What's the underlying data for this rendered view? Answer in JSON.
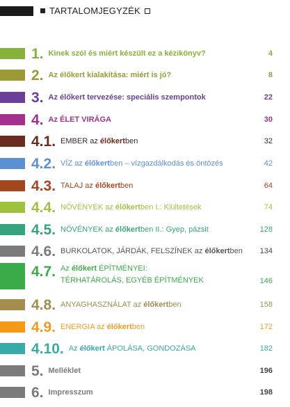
{
  "header": {
    "title": "TARTALOMJEGYZÉK"
  },
  "entries": [
    {
      "number": "1.",
      "title": [
        {
          "text": "Kinek szól és miért készült ez a kézikönyv?"
        }
      ],
      "page": "4"
    },
    {
      "number": "2.",
      "title": [
        {
          "text": "Az "
        },
        {
          "text": "élőkert",
          "bold": true
        },
        {
          "text": " kialakítása: miért is jó?"
        }
      ],
      "page": "8"
    },
    {
      "number": "3.",
      "title": [
        {
          "text": "Az "
        },
        {
          "text": "élőkert",
          "bold": true
        },
        {
          "text": " tervezése: speciális szempontok"
        }
      ],
      "page": "22"
    },
    {
      "number": "4.",
      "title": [
        {
          "text": "Az ÉLET VIRÁGA"
        }
      ],
      "page": "30"
    },
    {
      "number": "4.1.",
      "title": [
        {
          "text": "EMBER az "
        },
        {
          "text": "élőkert",
          "bold": true
        },
        {
          "text": "ben"
        }
      ],
      "page": "32"
    },
    {
      "number": "4.2.",
      "title": [
        {
          "text": "VÍZ az "
        },
        {
          "text": "élőkert",
          "bold": true
        },
        {
          "text": "ben – vízgazdálkodás és öntözés"
        }
      ],
      "page": "42"
    },
    {
      "number": "4.3.",
      "title": [
        {
          "text": "TALAJ az "
        },
        {
          "text": "élőkert",
          "bold": true
        },
        {
          "text": "ben"
        }
      ],
      "page": "64"
    },
    {
      "number": "4.4.",
      "title": [
        {
          "text": "NÖVÉNYEK az "
        },
        {
          "text": "élőkert",
          "bold": true
        },
        {
          "text": "ben I.: Kiültetések"
        }
      ],
      "page": "74"
    },
    {
      "number": "4.5.",
      "title": [
        {
          "text": "NÖVÉNYEK az "
        },
        {
          "text": "élőkert",
          "bold": true
        },
        {
          "text": "ben II.: Gyep, pázsit"
        }
      ],
      "page": "128"
    },
    {
      "number": "4.6.",
      "title": [
        {
          "text": "BURKOLATOK, JÁRDÁK, FELSZÍNEK az "
        },
        {
          "text": "élőkert",
          "bold": true
        },
        {
          "text": "ben"
        }
      ],
      "page": "134"
    },
    {
      "number": "4.7.",
      "title": [
        {
          "text": "Az "
        },
        {
          "text": "élőkert",
          "bold": true
        },
        {
          "text": " ÉPÍTMÉNYEI: TÉRHATÁROLÁS, EGYÉB ÉPÍTMÉNYEK"
        }
      ],
      "page": "146"
    },
    {
      "number": "4.8.",
      "title": [
        {
          "text": "ANYAGHASZNÁLAT az "
        },
        {
          "text": "élőkert",
          "bold": true
        },
        {
          "text": "ben"
        }
      ],
      "page": "158"
    },
    {
      "number": "4.9.",
      "title": [
        {
          "text": "ENERGIA az "
        },
        {
          "text": "élőkert",
          "bold": true
        },
        {
          "text": "ben"
        }
      ],
      "page": "172"
    },
    {
      "number": "4.10.",
      "title": [
        {
          "text": "Az "
        },
        {
          "text": "élőkert",
          "bold": true
        },
        {
          "text": " ÁPOLÁSA, GONDOZÁSA"
        }
      ],
      "page": "182"
    },
    {
      "number": "5.",
      "title": [
        {
          "text": "Melléklet"
        }
      ],
      "page": "196"
    },
    {
      "number": "6.",
      "title": [
        {
          "text": "Impresszum"
        }
      ],
      "page": "198"
    }
  ]
}
